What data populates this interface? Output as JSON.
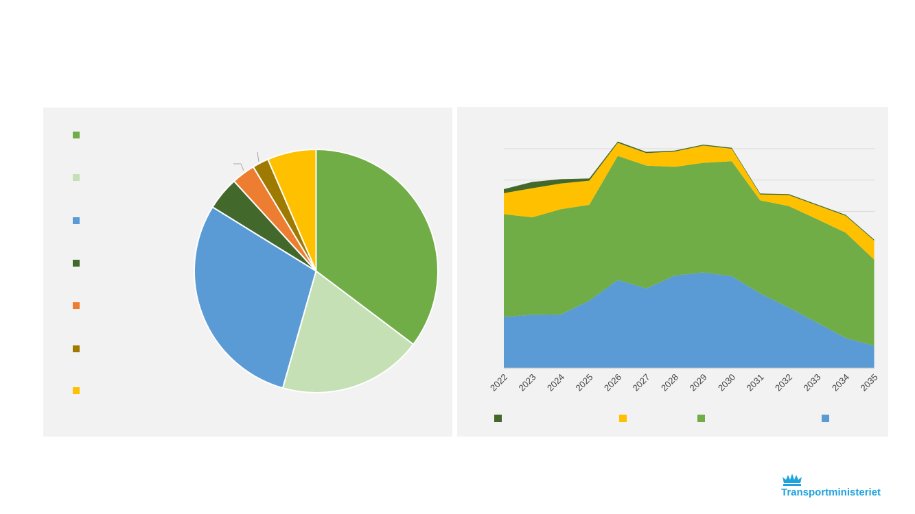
{
  "colors": {
    "green": "#70ad47",
    "light_green": "#c5e0b4",
    "blue": "#5b9bd5",
    "dark_green": "#43682b",
    "orange": "#ed7d31",
    "dark_gold": "#9e7b00",
    "yellow": "#ffc000",
    "panel_bg": "#f2f2f2",
    "brand_blue": "#1fa3dc"
  },
  "chart_data": [
    {
      "type": "pie",
      "series": [
        {
          "color": "#70ad47",
          "value": 36.0
        },
        {
          "color": "#c5e0b4",
          "value": 19.5
        },
        {
          "color": "#5b9bd5",
          "value": 30.0
        },
        {
          "color": "#43682b",
          "value": 4.5
        },
        {
          "color": "#ed7d31",
          "value": 3.2
        },
        {
          "color": "#9e7b00",
          "value": 2.2
        },
        {
          "color": "#ffc000",
          "value": 6.6
        }
      ],
      "legend_placement": "left"
    },
    {
      "type": "area",
      "stacked": true,
      "categories": [
        "2022",
        "2023",
        "2024",
        "2025",
        "2026",
        "2027",
        "2028",
        "2029",
        "2030",
        "2031",
        "2032",
        "2033",
        "2034",
        "2035"
      ],
      "ylim": [
        0,
        7
      ],
      "grid": true,
      "legend_placement": "bottom",
      "series": [
        {
          "color": "#5b9bd5",
          "values": [
            1.63,
            1.7,
            1.71,
            2.15,
            2.81,
            2.54,
            2.95,
            3.05,
            2.93,
            2.38,
            1.93,
            1.45,
            0.96,
            0.71
          ]
        },
        {
          "color": "#70ad47",
          "values": [
            3.28,
            3.11,
            3.36,
            3.06,
            3.96,
            3.92,
            3.47,
            3.5,
            3.67,
            2.97,
            3.24,
            3.3,
            3.36,
            2.75
          ]
        },
        {
          "color": "#ffc000",
          "values": [
            0.67,
            0.93,
            0.82,
            0.77,
            0.42,
            0.4,
            0.49,
            0.55,
            0.4,
            0.19,
            0.35,
            0.44,
            0.54,
            0.61
          ]
        },
        {
          "color": "#43682b",
          "values": [
            0.13,
            0.2,
            0.14,
            0.07,
            0.04,
            0.04,
            0.03,
            0.03,
            0.03,
            0.03,
            0.03,
            0.03,
            0.03,
            0.03
          ]
        }
      ]
    }
  ],
  "logo": {
    "text": "Transportministeriet"
  }
}
